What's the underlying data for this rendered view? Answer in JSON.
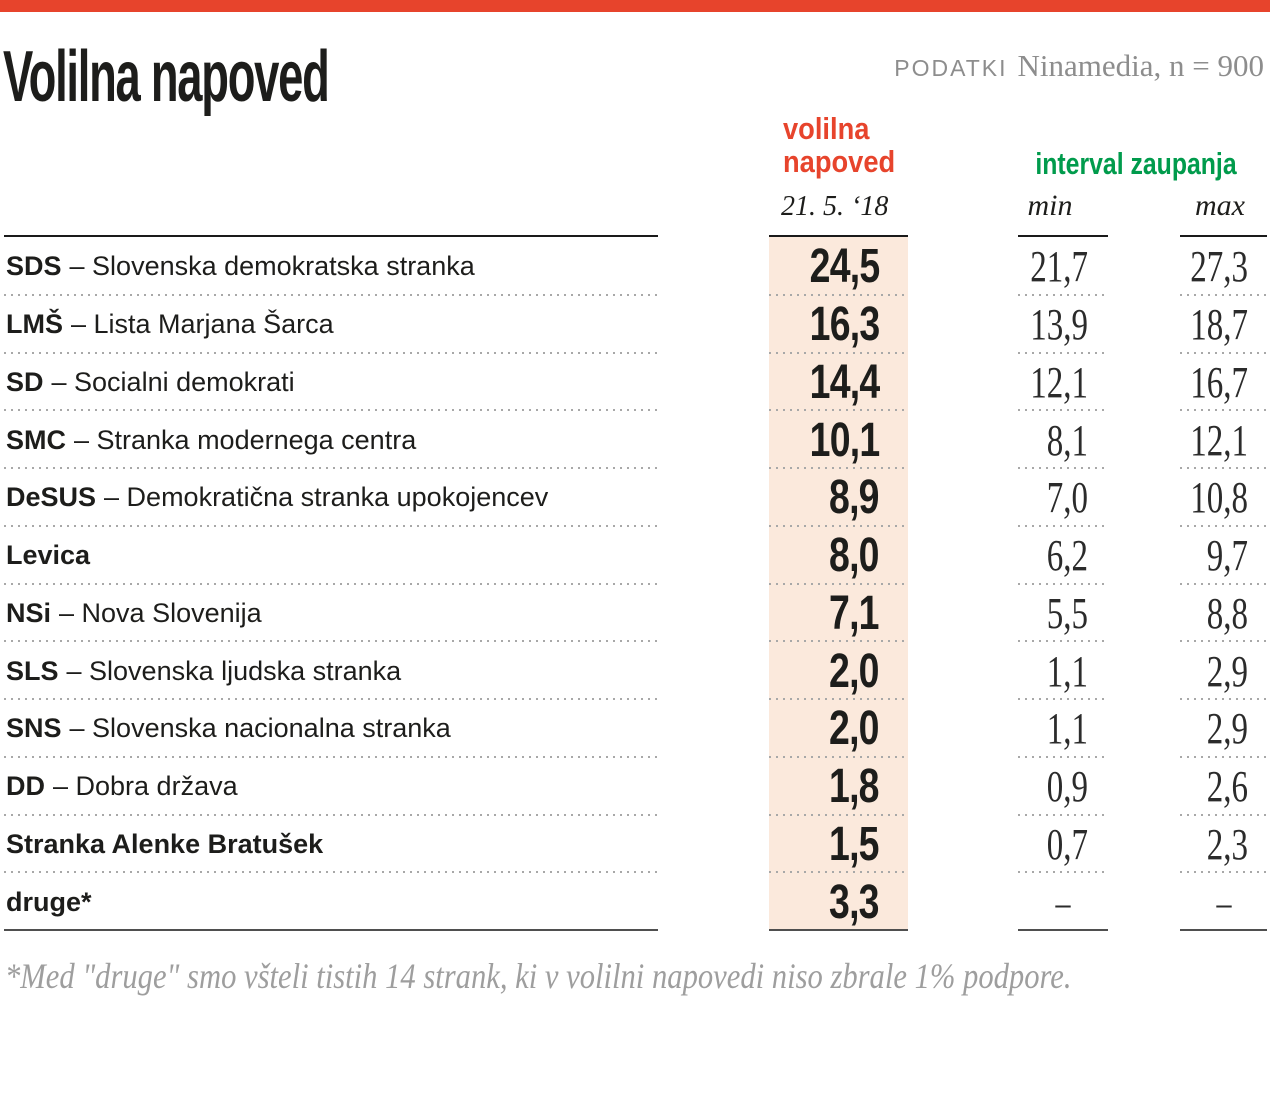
{
  "colors": {
    "red": "#e7442c",
    "green": "#009b4c",
    "peach": "#fbe9dc"
  },
  "header": {
    "title": "Volilna napoved",
    "source_label": "PODATKI",
    "source_value": "Ninamedia, n = 900"
  },
  "table": {
    "forecast_header": {
      "label": "volilna\nnapoved",
      "date": "21. 5. ‘18"
    },
    "interval_header": {
      "label": "interval zaupanja",
      "min": "min",
      "max": "max"
    },
    "rows": [
      {
        "abbr": "SDS",
        "name": "– Slovenska demokratska stranka",
        "forecast": "24,5",
        "min": "21,7",
        "max": "27,3"
      },
      {
        "abbr": "LMŠ",
        "name": "– Lista Marjana Šarca",
        "forecast": "16,3",
        "min": "13,9",
        "max": "18,7"
      },
      {
        "abbr": "SD",
        "name": "– Socialni demokrati",
        "forecast": "14,4",
        "min": "12,1",
        "max": "16,7"
      },
      {
        "abbr": "SMC",
        "name": "– Stranka modernega centra",
        "forecast": "10,1",
        "min": "8,1",
        "max": "12,1"
      },
      {
        "abbr": "DeSUS",
        "name": "– Demokratična stranka upokojencev",
        "forecast": "8,9",
        "min": "7,0",
        "max": "10,8"
      },
      {
        "abbr": "Levica",
        "name": "",
        "forecast": "8,0",
        "min": "6,2",
        "max": "9,7"
      },
      {
        "abbr": "NSi",
        "name": "– Nova Slovenija",
        "forecast": "7,1",
        "min": "5,5",
        "max": "8,8"
      },
      {
        "abbr": "SLS",
        "name": "– Slovenska ljudska stranka",
        "forecast": "2,0",
        "min": "1,1",
        "max": "2,9"
      },
      {
        "abbr": "SNS",
        "name": "– Slovenska nacionalna stranka",
        "forecast": "2,0",
        "min": "1,1",
        "max": "2,9"
      },
      {
        "abbr": "DD",
        "name": " – Dobra država",
        "forecast": "1,8",
        "min": "0,9",
        "max": "2,6"
      },
      {
        "abbr": "Stranka Alenke Bratušek",
        "name": "",
        "forecast": "1,5",
        "min": "0,7",
        "max": "2,3"
      },
      {
        "abbr": "druge*",
        "name": "",
        "forecast": "3,3",
        "min": "–",
        "max": "–"
      }
    ]
  },
  "footnote": "*Med \"druge\" smo všteli tistih 14 strank, ki v volilni napovedi niso zbrale 1% podpore.",
  "chart_data": {
    "type": "table",
    "title": "Volilna napoved",
    "source": "PODATKI Ninamedia, n = 900",
    "forecast_date": "21. 5. ‘18",
    "columns": [
      "stranka",
      "volilna napoved 21. 5. ‘18",
      "interval zaupanja min",
      "interval zaupanja max"
    ],
    "rows": [
      {
        "party": "SDS – Slovenska demokratska stranka",
        "forecast": 24.5,
        "min": 21.7,
        "max": 27.3
      },
      {
        "party": "LMŠ – Lista Marjana Šarca",
        "forecast": 16.3,
        "min": 13.9,
        "max": 18.7
      },
      {
        "party": "SD – Socialni demokrati",
        "forecast": 14.4,
        "min": 12.1,
        "max": 16.7
      },
      {
        "party": "SMC – Stranka modernega centra",
        "forecast": 10.1,
        "min": 8.1,
        "max": 12.1
      },
      {
        "party": "DeSUS – Demokratična stranka upokojencev",
        "forecast": 8.9,
        "min": 7.0,
        "max": 10.8
      },
      {
        "party": "Levica",
        "forecast": 8.0,
        "min": 6.2,
        "max": 9.7
      },
      {
        "party": "NSi – Nova Slovenija",
        "forecast": 7.1,
        "min": 5.5,
        "max": 8.8
      },
      {
        "party": "SLS – Slovenska ljudska stranka",
        "forecast": 2.0,
        "min": 1.1,
        "max": 2.9
      },
      {
        "party": "SNS – Slovenska nacionalna stranka",
        "forecast": 2.0,
        "min": 1.1,
        "max": 2.9
      },
      {
        "party": "DD – Dobra država",
        "forecast": 1.8,
        "min": 0.9,
        "max": 2.6
      },
      {
        "party": "Stranka Alenke Bratušek",
        "forecast": 1.5,
        "min": 0.7,
        "max": 2.3
      },
      {
        "party": "druge*",
        "forecast": 3.3,
        "min": null,
        "max": null
      }
    ],
    "footnote": "*Med \"druge\" smo všteli tistih 14 strank, ki v volilni napovedi niso zbrale 1% podpore."
  }
}
